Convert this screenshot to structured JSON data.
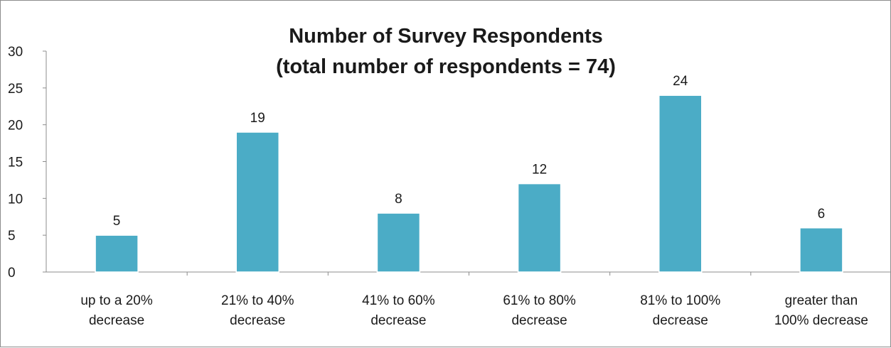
{
  "chart_data": {
    "type": "bar",
    "title_lines": [
      "Number of Survey Respondents",
      "(total number of respondents = 74)"
    ],
    "categories": [
      [
        "up to a 20%",
        "decrease"
      ],
      [
        "21% to 40%",
        "decrease"
      ],
      [
        "41% to 60%",
        "decrease"
      ],
      [
        "61% to 80%",
        "decrease"
      ],
      [
        "81% to 100%",
        "decrease"
      ],
      [
        "greater than",
        "100% decrease"
      ]
    ],
    "values": [
      5,
      19,
      8,
      12,
      24,
      6
    ],
    "value_labels": [
      "5",
      "19",
      "8",
      "12",
      "24",
      "6"
    ],
    "ylim": [
      0,
      30
    ],
    "yticks": [
      "0",
      "5",
      "10",
      "15",
      "20",
      "25",
      "30"
    ],
    "ytick_values": [
      0,
      5,
      10,
      15,
      20,
      25,
      30
    ],
    "bar_color": "#4bacc6",
    "grid": false,
    "legend": "none",
    "xlabel": "",
    "ylabel": ""
  }
}
